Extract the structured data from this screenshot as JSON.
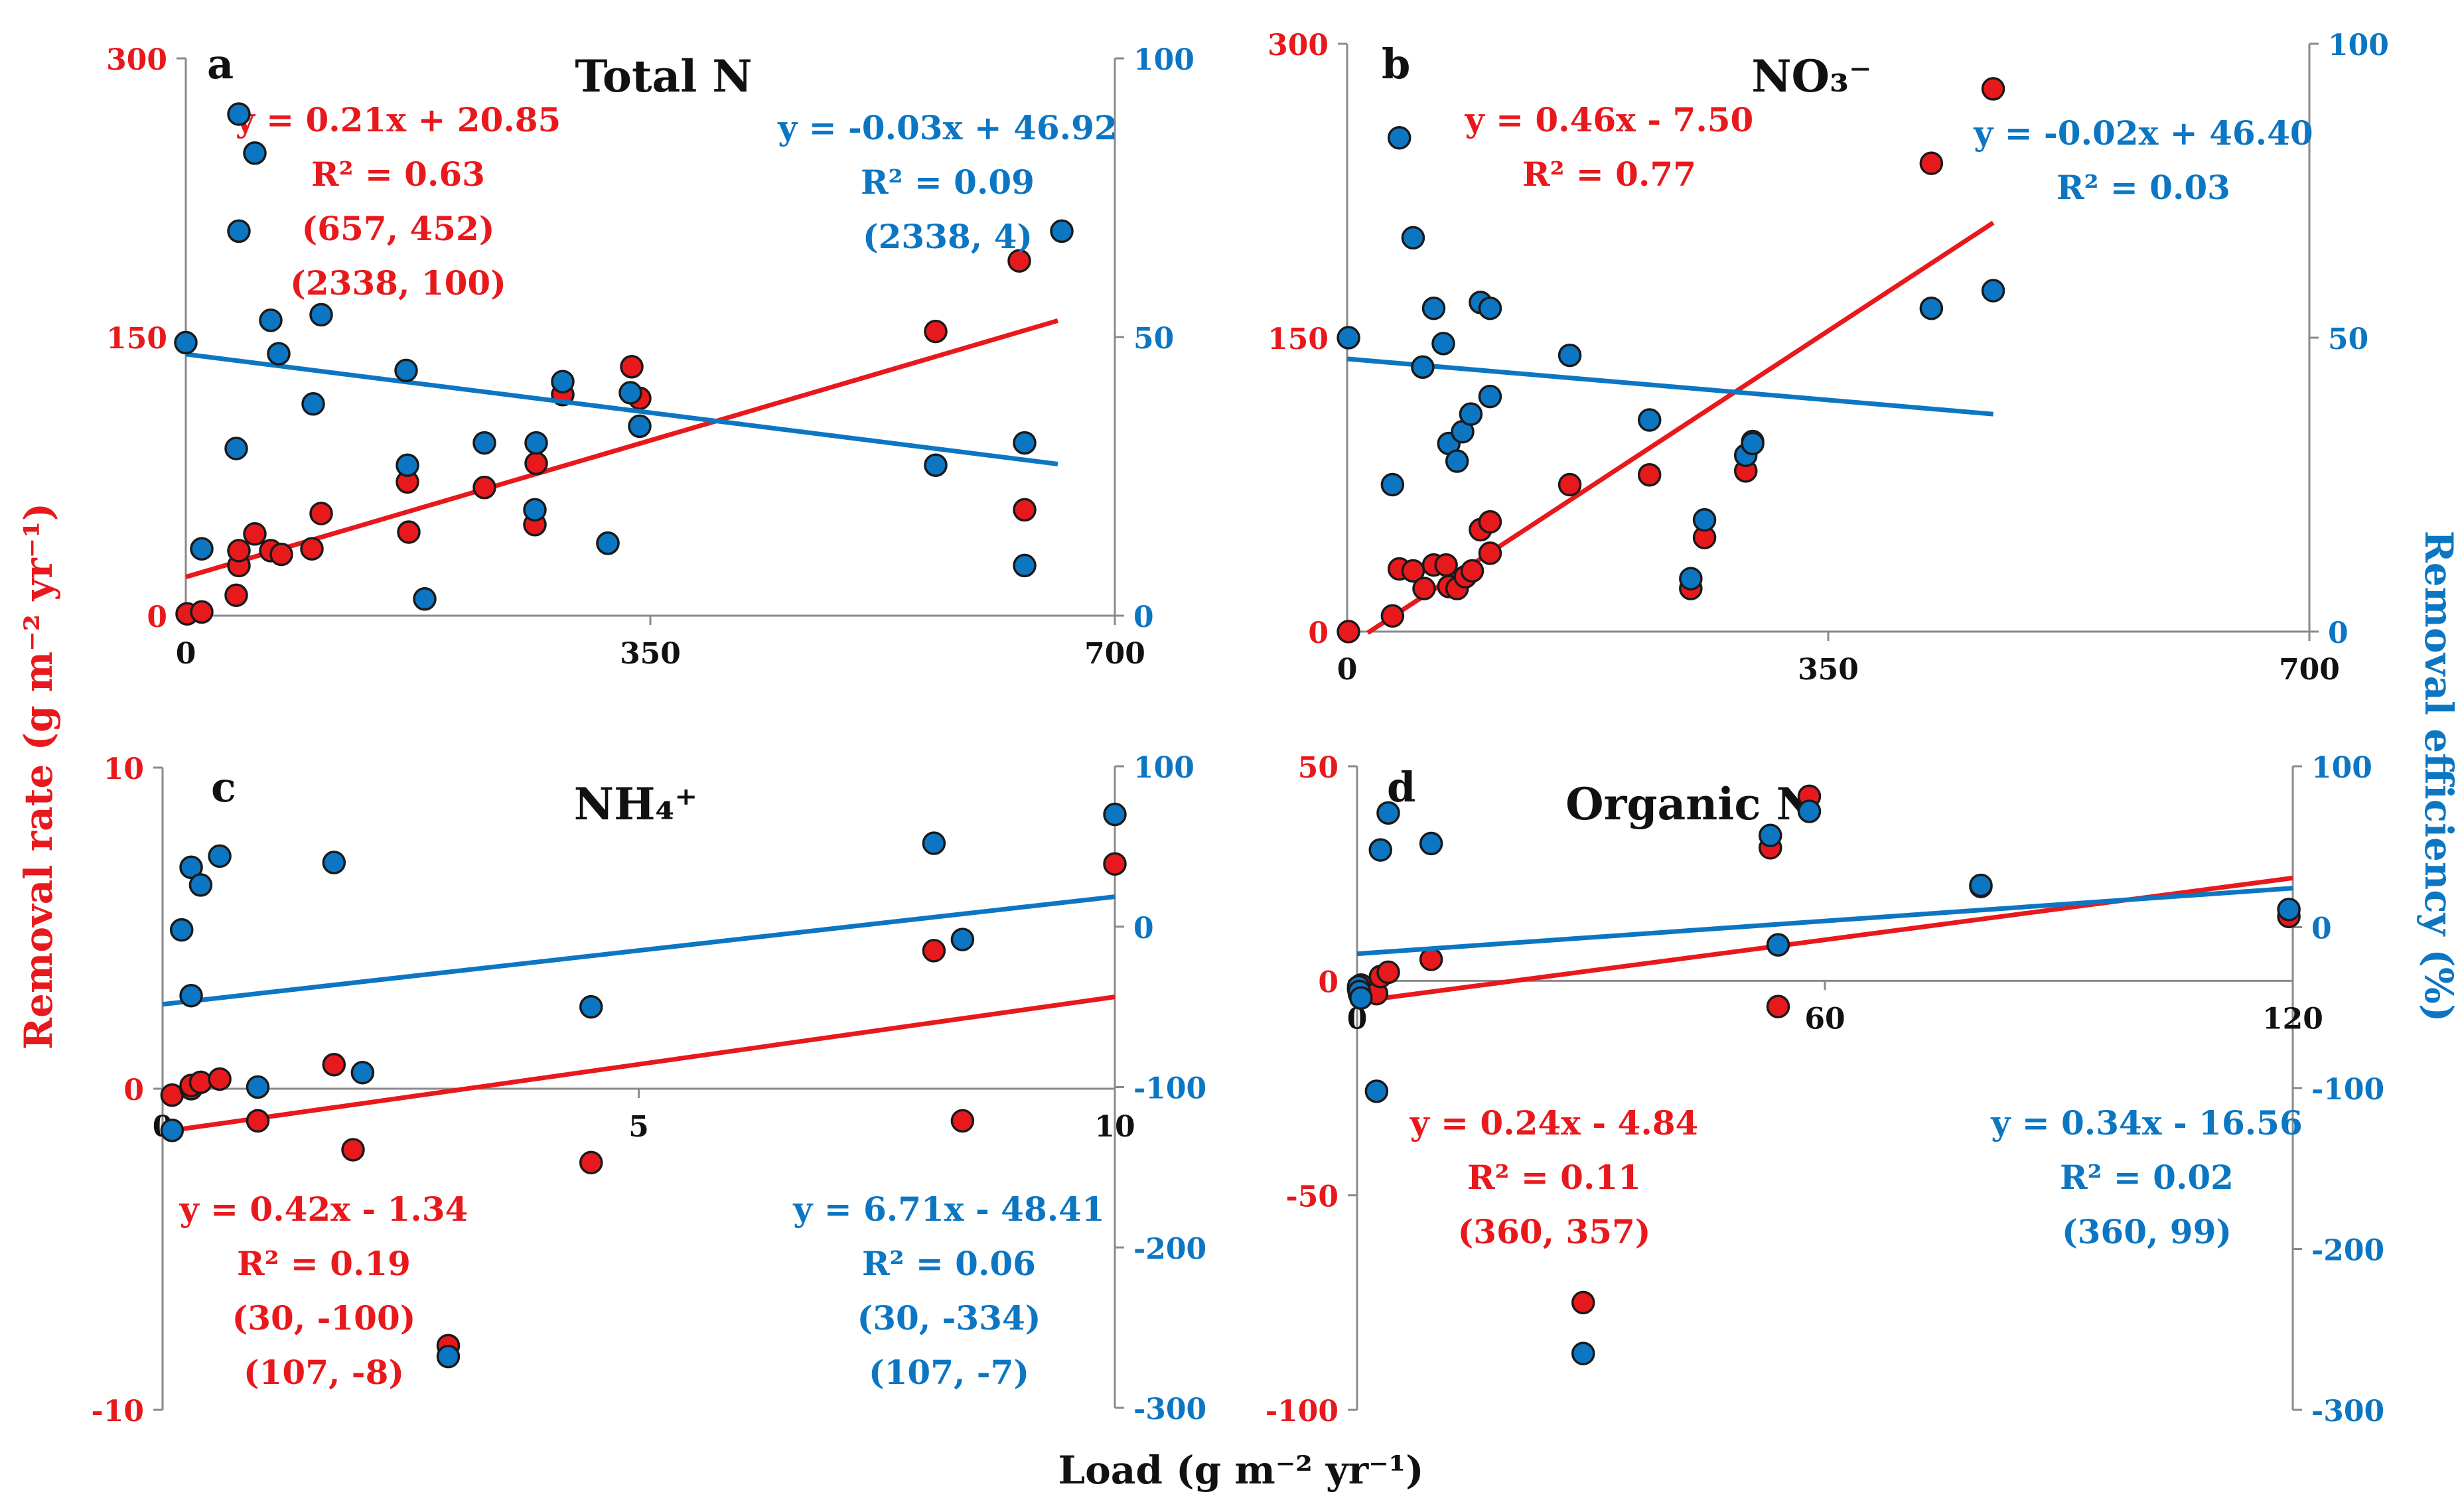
{
  "figure": {
    "x_label_shared": "Load (g m⁻² yr⁻¹)",
    "y_left_label": "Removal rate (g m⁻² yr⁻¹)",
    "y_right_label": "Removal efficiency (%)",
    "colors": {
      "rate": "#e8191c",
      "efficiency": "#0c76c3",
      "axis": "#8a8a8a",
      "text": "#111111"
    }
  },
  "chart_data": [
    {
      "id": "a",
      "type": "scatter",
      "title": "Total N",
      "panel_letter": "a",
      "xlim": [
        0,
        700
      ],
      "xticks": [
        0,
        350,
        700
      ],
      "ylim_left": [
        0,
        300
      ],
      "yticks_left": [
        0,
        150,
        300
      ],
      "ylim_right": [
        0,
        100
      ],
      "yticks_right": [
        0,
        50,
        100
      ],
      "series": [
        {
          "name": "Removal rate",
          "axis": "left",
          "color": "#e8191c",
          "points": [
            [
              1,
              1
            ],
            [
              12,
              2
            ],
            [
              38,
              11
            ],
            [
              40,
              27
            ],
            [
              40,
              35
            ],
            [
              52,
              44
            ],
            [
              64,
              35
            ],
            [
              72,
              33
            ],
            [
              95,
              36
            ],
            [
              102,
              55
            ],
            [
              167,
              72
            ],
            [
              168,
              45
            ],
            [
              225,
              69
            ],
            [
              263,
              49
            ],
            [
              264,
              82
            ],
            [
              284,
              119
            ],
            [
              318,
              39
            ],
            [
              336,
              134
            ],
            [
              342,
              117
            ],
            [
              565,
              153
            ],
            [
              628,
              191
            ],
            [
              632,
              57
            ]
          ],
          "fit": {
            "slope": 0.21,
            "intercept": 20.85,
            "x_range": [
              0,
              657
            ]
          },
          "annotations": [
            "y = 0.21x + 20.85",
            "R² = 0.63",
            "(657, 452)",
            "(2338, 100)"
          ]
        },
        {
          "name": "Removal efficiency",
          "axis": "right",
          "color": "#0c76c3",
          "points": [
            [
              0,
              49
            ],
            [
              12,
              12
            ],
            [
              38,
              30
            ],
            [
              40,
              90
            ],
            [
              40,
              69
            ],
            [
              52,
              83
            ],
            [
              64,
              53
            ],
            [
              70,
              47
            ],
            [
              96,
              38
            ],
            [
              102,
              54
            ],
            [
              166,
              44
            ],
            [
              167,
              27
            ],
            [
              180,
              3
            ],
            [
              225,
              31
            ],
            [
              263,
              19
            ],
            [
              264,
              31
            ],
            [
              284,
              42
            ],
            [
              318,
              13
            ],
            [
              335,
              40
            ],
            [
              342,
              34
            ],
            [
              565,
              27
            ],
            [
              632,
              31
            ],
            [
              632,
              9
            ],
            [
              660,
              69
            ]
          ],
          "fit": {
            "slope": -0.03,
            "intercept": 46.92,
            "x_range": [
              0,
              657
            ]
          },
          "annotations": [
            "y = -0.03x + 46.92",
            "R² = 0.09",
            "(2338, 4)"
          ]
        }
      ]
    },
    {
      "id": "b",
      "type": "scatter",
      "title": "NO₃⁻",
      "panel_letter": "b",
      "xlim": [
        0,
        700
      ],
      "xticks": [
        0,
        350,
        700
      ],
      "ylim_left": [
        0,
        300
      ],
      "yticks_left": [
        0,
        150,
        300
      ],
      "ylim_right": [
        0,
        100
      ],
      "yticks_right": [
        0,
        50,
        100
      ],
      "series": [
        {
          "name": "Removal rate",
          "axis": "left",
          "color": "#e8191c",
          "points": [
            [
              1,
              0
            ],
            [
              33,
              8
            ],
            [
              38,
              32
            ],
            [
              48,
              31
            ],
            [
              56,
              22
            ],
            [
              63,
              34
            ],
            [
              72,
              34
            ],
            [
              74,
              23
            ],
            [
              80,
              22
            ],
            [
              86,
              28
            ],
            [
              91,
              31
            ],
            [
              97,
              52
            ],
            [
              104,
              40
            ],
            [
              104,
              56
            ],
            [
              162,
              75
            ],
            [
              220,
              80
            ],
            [
              250,
              22
            ],
            [
              260,
              48
            ],
            [
              290,
              82
            ],
            [
              295,
              97
            ],
            [
              425,
              239
            ],
            [
              470,
              277
            ]
          ],
          "fit": {
            "slope": 0.46,
            "intercept": -7.5,
            "x_range": [
              15,
              470
            ]
          },
          "annotations": [
            "y = 0.46x - 7.50",
            "R² = 0.77"
          ]
        },
        {
          "name": "Removal efficiency",
          "axis": "right",
          "color": "#0c76c3",
          "points": [
            [
              1,
              50
            ],
            [
              33,
              25
            ],
            [
              38,
              84
            ],
            [
              48,
              67
            ],
            [
              55,
              45
            ],
            [
              63,
              55
            ],
            [
              70,
              49
            ],
            [
              74,
              32
            ],
            [
              80,
              29
            ],
            [
              84,
              34
            ],
            [
              90,
              37
            ],
            [
              97,
              56
            ],
            [
              104,
              40
            ],
            [
              104,
              55
            ],
            [
              162,
              47
            ],
            [
              220,
              36
            ],
            [
              250,
              9
            ],
            [
              260,
              19
            ],
            [
              290,
              30
            ],
            [
              295,
              32
            ],
            [
              425,
              55
            ],
            [
              470,
              58
            ]
          ],
          "fit": {
            "slope": -0.02,
            "intercept": 46.4,
            "x_range": [
              0,
              470
            ]
          },
          "annotations": [
            "y = -0.02x + 46.40",
            "R² = 0.03"
          ]
        }
      ]
    },
    {
      "id": "c",
      "type": "scatter",
      "title": "NH₄⁺",
      "panel_letter": "c",
      "xlim": [
        0,
        10
      ],
      "xticks": [
        0,
        5,
        10
      ],
      "ylim_left": [
        -10,
        10
      ],
      "yticks_left": [
        -10,
        0,
        10
      ],
      "ylim_right": [
        -300,
        100
      ],
      "yticks_right": [
        -300,
        -200,
        -100,
        0,
        100
      ],
      "series": [
        {
          "name": "Removal rate",
          "axis": "left",
          "color": "#e8191c",
          "points": [
            [
              0.1,
              -0.2
            ],
            [
              0.3,
              0.0
            ],
            [
              0.3,
              0.1
            ],
            [
              0.4,
              0.2
            ],
            [
              0.6,
              0.3
            ],
            [
              1.0,
              -1.0
            ],
            [
              1.8,
              0.75
            ],
            [
              2.0,
              -1.9
            ],
            [
              3.0,
              -8.0
            ],
            [
              4.5,
              -2.3
            ],
            [
              8.1,
              4.3
            ],
            [
              8.4,
              -1.0
            ],
            [
              10.0,
              7.0
            ]
          ],
          "fit": {
            "slope": 0.42,
            "intercept": -1.34,
            "x_range": [
              0,
              10
            ]
          },
          "annotations": [
            "y = 0.42x - 1.34",
            "R² = 0.19",
            "(30, -100)",
            "(107, -8)"
          ]
        },
        {
          "name": "Removal efficiency",
          "axis": "right",
          "color": "#0c76c3",
          "points": [
            [
              0.1,
              -127
            ],
            [
              0.2,
              -2
            ],
            [
              0.3,
              -43
            ],
            [
              0.3,
              37
            ],
            [
              0.4,
              26
            ],
            [
              0.6,
              44
            ],
            [
              1.0,
              -100
            ],
            [
              1.8,
              40
            ],
            [
              2.1,
              -91
            ],
            [
              3.0,
              -268
            ],
            [
              4.5,
              -50
            ],
            [
              8.1,
              52
            ],
            [
              8.4,
              -8
            ],
            [
              10.0,
              70
            ]
          ],
          "fit": {
            "slope": 6.71,
            "intercept": -48.41,
            "x_range": [
              0,
              10
            ]
          },
          "annotations": [
            "y = 6.71x - 48.41",
            "R² = 0.06",
            "(30, -334)",
            "(107, -7)"
          ]
        }
      ]
    },
    {
      "id": "d",
      "type": "scatter",
      "title": "Organic N",
      "panel_letter": "d",
      "xlim": [
        0,
        120
      ],
      "xticks": [
        0,
        60,
        120
      ],
      "ylim_left": [
        -100,
        50
      ],
      "yticks_left": [
        -100,
        -50,
        0,
        50
      ],
      "ylim_right": [
        -300,
        100
      ],
      "yticks_right": [
        -300,
        -200,
        -100,
        0,
        100
      ],
      "series": [
        {
          "name": "Removal rate",
          "axis": "left",
          "color": "#e8191c",
          "points": [
            [
              0.2,
              -2
            ],
            [
              0.3,
              -3
            ],
            [
              0.5,
              -1
            ],
            [
              2.5,
              -3
            ],
            [
              3.0,
              1
            ],
            [
              4.0,
              2
            ],
            [
              9.5,
              5
            ],
            [
              29,
              -75
            ],
            [
              53,
              31
            ],
            [
              54,
              -6
            ],
            [
              58,
              43
            ],
            [
              80,
              22
            ],
            [
              119.5,
              15
            ]
          ],
          "fit": {
            "slope": 0.24,
            "intercept": -4.84,
            "x_range": [
              0,
              120
            ]
          },
          "annotations": [
            "y = 0.24x - 4.84",
            "R² = 0.11",
            "(360, 357)"
          ]
        },
        {
          "name": "Removal efficiency",
          "axis": "right",
          "color": "#0c76c3",
          "points": [
            [
              0.2,
              -37
            ],
            [
              0.3,
              -40
            ],
            [
              0.5,
              -44
            ],
            [
              2.5,
              -102
            ],
            [
              3.0,
              48
            ],
            [
              4.0,
              71
            ],
            [
              9.5,
              52
            ],
            [
              29,
              -265
            ],
            [
              53,
              57
            ],
            [
              54,
              -11
            ],
            [
              58,
              72
            ],
            [
              80,
              26
            ],
            [
              119.5,
              11
            ]
          ],
          "fit": {
            "slope": 0.34,
            "intercept": -16.56,
            "x_range": [
              0,
              120
            ]
          },
          "annotations": [
            "y = 0.34x - 16.56",
            "R² = 0.02",
            "(360, 99)"
          ]
        }
      ]
    }
  ]
}
